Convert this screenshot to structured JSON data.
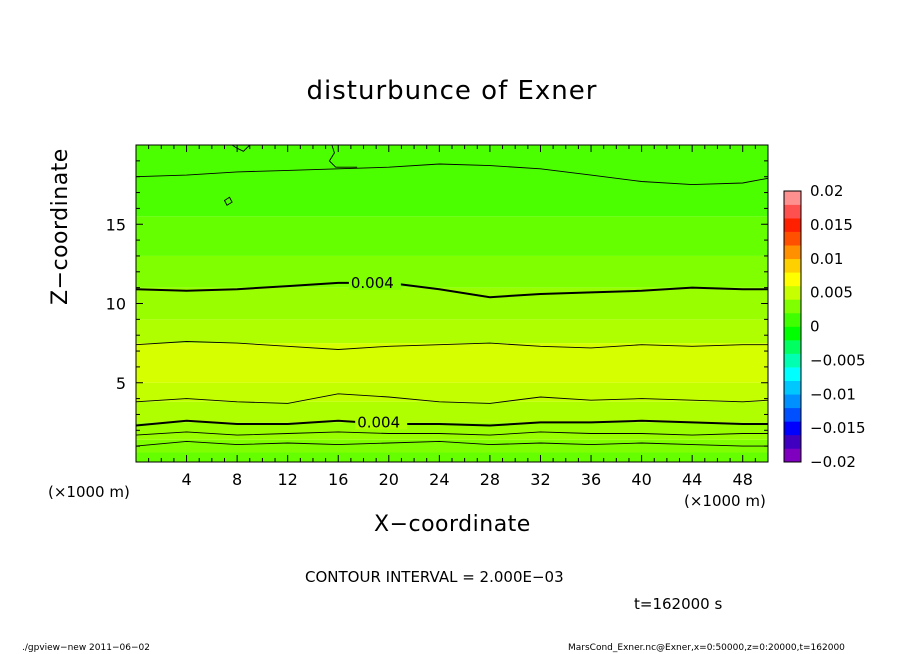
{
  "title": "disturbunce of Exner",
  "xlabel": "X−coordinate",
  "ylabel": "Z−coordinate",
  "x_unit_left": "(×1000 m)",
  "x_unit_right": "(×1000 m)",
  "contour_interval_text": "CONTOUR INTERVAL = 2.000E−03",
  "time_text": "t=162000 s",
  "footer_left": "./gpview−new   2011−06−02",
  "footer_right": "MarsCond_Exner.nc@Exner,x=0:50000,z=0:20000,t=162000",
  "chart_data": {
    "type": "heatmap",
    "xlim": [
      0,
      50
    ],
    "ylim": [
      0,
      20
    ],
    "x_ticks": [
      4,
      8,
      12,
      16,
      20,
      24,
      28,
      32,
      36,
      40,
      44,
      48
    ],
    "y_ticks": [
      5,
      10,
      15
    ],
    "colorbar": {
      "ticks": [
        "0.02",
        "0.015",
        "0.01",
        "0.005",
        "0",
        "−0.005",
        "−0.01",
        "−0.015",
        "−0.02"
      ],
      "range": [
        -0.02,
        0.02
      ],
      "colors": [
        "#8000c0",
        "#4000c0",
        "#0000ff",
        "#0050ff",
        "#0090ff",
        "#00c8ff",
        "#00ffff",
        "#00ffb0",
        "#00ff60",
        "#00ff00",
        "#40ff00",
        "#80ff00",
        "#c8ff00",
        "#ffff00",
        "#ffd000",
        "#ff9000",
        "#ff5000",
        "#ff2000",
        "#ff5050",
        "#ff9090"
      ]
    },
    "field_bands": [
      {
        "z0": 0.0,
        "z1": 0.6,
        "color": "#66ff00"
      },
      {
        "z0": 0.6,
        "z1": 1.4,
        "color": "#80ff00"
      },
      {
        "z0": 1.4,
        "z1": 2.5,
        "color": "#99ff00"
      },
      {
        "z0": 2.5,
        "z1": 3.8,
        "color": "#b0ff00"
      },
      {
        "z0": 3.8,
        "z1": 5.0,
        "color": "#c4ff00"
      },
      {
        "z0": 5.0,
        "z1": 7.5,
        "color": "#d6ff00"
      },
      {
        "z0": 7.5,
        "z1": 9.0,
        "color": "#b0ff00"
      },
      {
        "z0": 9.0,
        "z1": 11.0,
        "color": "#99ff00"
      },
      {
        "z0": 11.0,
        "z1": 13.0,
        "color": "#80ff00"
      },
      {
        "z0": 13.0,
        "z1": 15.5,
        "color": "#66ff00"
      },
      {
        "z0": 15.5,
        "z1": 20.0,
        "color": "#4cff00"
      }
    ],
    "contours": [
      {
        "level": "0.004",
        "bold": true,
        "label_at": [
          17.5,
          2.5
        ],
        "points": [
          [
            0,
            2.3
          ],
          [
            4,
            2.6
          ],
          [
            8,
            2.4
          ],
          [
            12,
            2.4
          ],
          [
            16,
            2.6
          ],
          [
            20,
            2.4
          ],
          [
            24,
            2.4
          ],
          [
            28,
            2.3
          ],
          [
            32,
            2.5
          ],
          [
            36,
            2.5
          ],
          [
            40,
            2.6
          ],
          [
            44,
            2.5
          ],
          [
            48,
            2.4
          ],
          [
            50,
            2.4
          ]
        ]
      },
      {
        "level": "",
        "bold": false,
        "points": [
          [
            0,
            1.0
          ],
          [
            4,
            1.3
          ],
          [
            8,
            1.1
          ],
          [
            12,
            1.2
          ],
          [
            16,
            1.1
          ],
          [
            20,
            1.2
          ],
          [
            24,
            1.3
          ],
          [
            28,
            1.1
          ],
          [
            32,
            1.2
          ],
          [
            36,
            1.1
          ],
          [
            40,
            1.2
          ],
          [
            44,
            1.1
          ],
          [
            48,
            1.0
          ],
          [
            50,
            1.0
          ]
        ]
      },
      {
        "level": "",
        "bold": false,
        "points": [
          [
            0,
            1.7
          ],
          [
            4,
            1.9
          ],
          [
            8,
            1.7
          ],
          [
            12,
            1.8
          ],
          [
            16,
            1.9
          ],
          [
            20,
            1.8
          ],
          [
            24,
            1.8
          ],
          [
            28,
            1.7
          ],
          [
            32,
            1.9
          ],
          [
            36,
            1.8
          ],
          [
            40,
            1.8
          ],
          [
            44,
            1.7
          ],
          [
            48,
            1.8
          ],
          [
            50,
            1.8
          ]
        ]
      },
      {
        "level": "",
        "bold": false,
        "points": [
          [
            0,
            3.8
          ],
          [
            4,
            4.0
          ],
          [
            8,
            3.8
          ],
          [
            12,
            3.7
          ],
          [
            16,
            4.3
          ],
          [
            20,
            4.1
          ],
          [
            24,
            3.8
          ],
          [
            28,
            3.7
          ],
          [
            32,
            4.1
          ],
          [
            36,
            3.9
          ],
          [
            40,
            4.0
          ],
          [
            44,
            3.9
          ],
          [
            48,
            3.8
          ],
          [
            50,
            3.9
          ]
        ]
      },
      {
        "level": "",
        "bold": false,
        "points": [
          [
            0,
            7.4
          ],
          [
            4,
            7.6
          ],
          [
            8,
            7.5
          ],
          [
            12,
            7.3
          ],
          [
            16,
            7.1
          ],
          [
            20,
            7.3
          ],
          [
            24,
            7.4
          ],
          [
            28,
            7.5
          ],
          [
            32,
            7.3
          ],
          [
            36,
            7.2
          ],
          [
            40,
            7.4
          ],
          [
            44,
            7.3
          ],
          [
            48,
            7.4
          ],
          [
            50,
            7.4
          ]
        ]
      },
      {
        "level": "0.004",
        "bold": true,
        "label_at": [
          17.0,
          11.3
        ],
        "points": [
          [
            0,
            10.9
          ],
          [
            4,
            10.8
          ],
          [
            8,
            10.9
          ],
          [
            12,
            11.1
          ],
          [
            16,
            11.3
          ],
          [
            20,
            11.3
          ],
          [
            24,
            10.9
          ],
          [
            28,
            10.4
          ],
          [
            32,
            10.6
          ],
          [
            36,
            10.7
          ],
          [
            40,
            10.8
          ],
          [
            44,
            11.0
          ],
          [
            48,
            10.9
          ],
          [
            50,
            10.9
          ]
        ]
      },
      {
        "level": "",
        "bold": false,
        "points": [
          [
            0,
            18.0
          ],
          [
            4,
            18.1
          ],
          [
            8,
            18.3
          ],
          [
            12,
            18.4
          ],
          [
            16,
            18.5
          ],
          [
            20,
            18.6
          ],
          [
            24,
            18.8
          ],
          [
            28,
            18.7
          ],
          [
            32,
            18.5
          ],
          [
            36,
            18.1
          ],
          [
            40,
            17.7
          ],
          [
            44,
            17.5
          ],
          [
            48,
            17.6
          ],
          [
            50,
            17.9
          ]
        ]
      },
      {
        "level": "",
        "bold": false,
        "points": [
          [
            15.5,
            20
          ],
          [
            15.7,
            19.5
          ],
          [
            15.3,
            19.0
          ],
          [
            15.8,
            18.6
          ],
          [
            17.5,
            18.6
          ]
        ]
      },
      {
        "level": "",
        "bold": false,
        "points": [
          [
            7.6,
            20
          ],
          [
            8.0,
            19.8
          ],
          [
            8.5,
            19.6
          ],
          [
            9.0,
            20
          ]
        ]
      },
      {
        "level": "",
        "bold": false,
        "closed": true,
        "points": [
          [
            7.0,
            16.5
          ],
          [
            7.4,
            16.7
          ],
          [
            7.6,
            16.4
          ],
          [
            7.2,
            16.2
          ]
        ]
      }
    ]
  }
}
